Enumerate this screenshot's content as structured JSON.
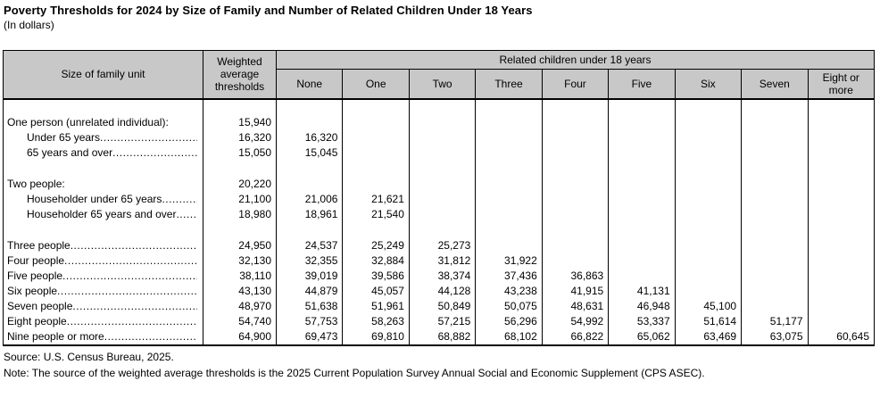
{
  "title": "Poverty Thresholds for 2024 by Size of Family and Number of Related Children Under 18 Years",
  "subtitle": "(In dollars)",
  "colors": {
    "header_bg": "#c8c8c8",
    "border": "#000000",
    "text": "#000000"
  },
  "table": {
    "header": {
      "size_of_family_unit": "Size of family unit",
      "weighted_average": "Weighted average thresholds",
      "related_children": "Related children under 18 years",
      "child_columns": [
        "None",
        "One",
        "Two",
        "Three",
        "Four",
        "Five",
        "Six",
        "Seven",
        "Eight or more"
      ]
    },
    "rows": [
      {
        "label": "",
        "indent": false,
        "leader": false,
        "values": [
          "",
          "",
          "",
          "",
          "",
          "",
          "",
          "",
          "",
          ""
        ]
      },
      {
        "label": "One person (unrelated individual):",
        "indent": false,
        "leader": false,
        "values": [
          "15,940",
          "",
          "",
          "",
          "",
          "",
          "",
          "",
          "",
          ""
        ]
      },
      {
        "label": "Under 65 years",
        "indent": true,
        "leader": true,
        "values": [
          "16,320",
          "16,320",
          "",
          "",
          "",
          "",
          "",
          "",
          "",
          ""
        ]
      },
      {
        "label": "65 years and over",
        "indent": true,
        "leader": true,
        "values": [
          "15,050",
          "15,045",
          "",
          "",
          "",
          "",
          "",
          "",
          "",
          ""
        ]
      },
      {
        "label": "",
        "indent": false,
        "leader": false,
        "values": [
          "",
          "",
          "",
          "",
          "",
          "",
          "",
          "",
          "",
          ""
        ]
      },
      {
        "label": "Two people:",
        "indent": false,
        "leader": false,
        "values": [
          "20,220",
          "",
          "",
          "",
          "",
          "",
          "",
          "",
          "",
          ""
        ]
      },
      {
        "label": "Householder under 65 years",
        "indent": true,
        "leader": true,
        "values": [
          "21,100",
          "21,006",
          "21,621",
          "",
          "",
          "",
          "",
          "",
          "",
          ""
        ]
      },
      {
        "label": "Householder 65 years and over",
        "indent": true,
        "leader": true,
        "values": [
          "18,980",
          "18,961",
          "21,540",
          "",
          "",
          "",
          "",
          "",
          "",
          ""
        ]
      },
      {
        "label": "",
        "indent": false,
        "leader": false,
        "values": [
          "",
          "",
          "",
          "",
          "",
          "",
          "",
          "",
          "",
          ""
        ]
      },
      {
        "label": "Three people",
        "indent": false,
        "leader": true,
        "values": [
          "24,950",
          "24,537",
          "25,249",
          "25,273",
          "",
          "",
          "",
          "",
          "",
          ""
        ]
      },
      {
        "label": "Four people",
        "indent": false,
        "leader": true,
        "values": [
          "32,130",
          "32,355",
          "32,884",
          "31,812",
          "31,922",
          "",
          "",
          "",
          "",
          ""
        ]
      },
      {
        "label": "Five people",
        "indent": false,
        "leader": true,
        "values": [
          "38,110",
          "39,019",
          "39,586",
          "38,374",
          "37,436",
          "36,863",
          "",
          "",
          "",
          ""
        ]
      },
      {
        "label": "Six people",
        "indent": false,
        "leader": true,
        "values": [
          "43,130",
          "44,879",
          "45,057",
          "44,128",
          "43,238",
          "41,915",
          "41,131",
          "",
          "",
          ""
        ]
      },
      {
        "label": "Seven people",
        "indent": false,
        "leader": true,
        "values": [
          "48,970",
          "51,638",
          "51,961",
          "50,849",
          "50,075",
          "48,631",
          "46,948",
          "45,100",
          "",
          ""
        ]
      },
      {
        "label": "Eight people",
        "indent": false,
        "leader": true,
        "values": [
          "54,740",
          "57,753",
          "58,263",
          "57,215",
          "56,296",
          "54,992",
          "53,337",
          "51,614",
          "51,177",
          ""
        ]
      },
      {
        "label": "Nine people or more",
        "indent": false,
        "leader": true,
        "values": [
          "64,900",
          "69,473",
          "69,810",
          "68,882",
          "68,102",
          "66,822",
          "65,062",
          "63,469",
          "63,075",
          "60,645"
        ]
      }
    ]
  },
  "footer": {
    "source": "Source: U.S. Census Bureau, 2025.",
    "note": "Note: The source of the weighted average thresholds is the 2025 Current Population Survey Annual Social and Economic Supplement (CPS ASEC)."
  }
}
